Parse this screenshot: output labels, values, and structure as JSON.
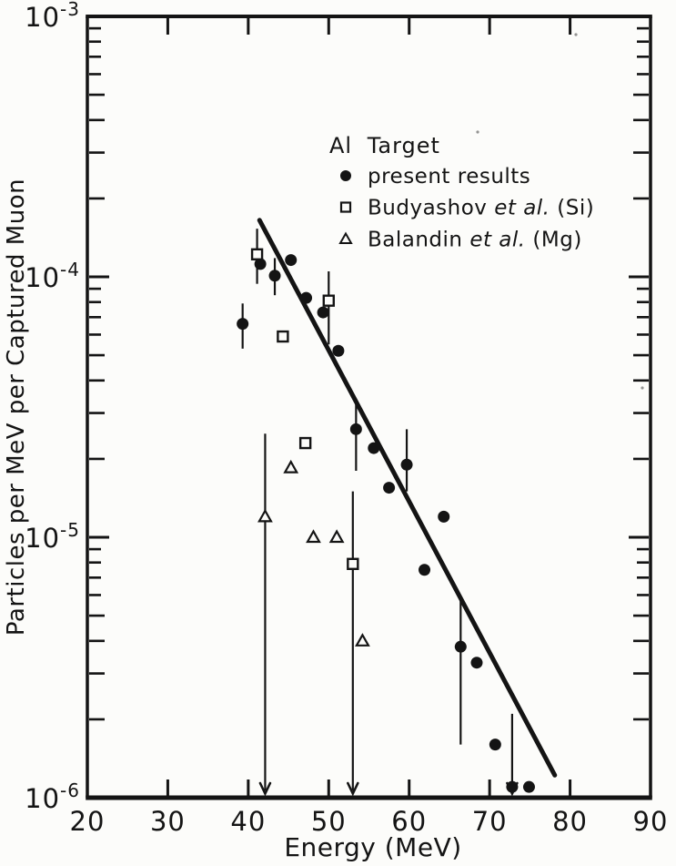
{
  "figure": {
    "background": "#fcfcfa",
    "ink": "#141414"
  },
  "chart_data": {
    "type": "scatter",
    "title": "Al Target",
    "xlabel": "Energy  (MeV)",
    "ylabel": "Particles per MeV per Captured Muon",
    "grid": false,
    "x_axis": {
      "min": 20,
      "max": 90,
      "ticks": [
        20,
        30,
        40,
        50,
        60,
        70,
        80,
        90
      ],
      "tick_labels": [
        "20",
        "30",
        "40",
        "50",
        "60",
        "70",
        "80",
        "90"
      ]
    },
    "y_axis": {
      "scale": "log",
      "max_exp": -3,
      "min_exp": -6,
      "decade_labels": [
        {
          "mantissa": "10",
          "exponent": "-3",
          "value_exp": -3
        },
        {
          "mantissa": "10",
          "exponent": "-4",
          "value_exp": -4
        },
        {
          "mantissa": "10",
          "exponent": "-5",
          "value_exp": -5
        },
        {
          "mantissa": "10",
          "exponent": "-6",
          "value_exp": -6
        }
      ]
    },
    "legend": {
      "title": "Al Target",
      "position": "upper-right-inside",
      "items": [
        {
          "marker": "filled-circle",
          "parts": [
            {
              "t": "present results",
              "i": false
            }
          ]
        },
        {
          "marker": "open-square",
          "parts": [
            {
              "t": "Budyashov ",
              "i": false
            },
            {
              "t": "et al.",
              "i": true
            },
            {
              "t": " (Si)",
              "i": false
            }
          ]
        },
        {
          "marker": "open-triangle",
          "parts": [
            {
              "t": "Balandin ",
              "i": false
            },
            {
              "t": "et al.",
              "i": true
            },
            {
              "t": " (Mg)",
              "i": false
            }
          ]
        }
      ]
    },
    "series": [
      {
        "name": "present results",
        "marker": "filled-circle",
        "points": [
          {
            "E": 39.3,
            "v": 6.6e-05,
            "lo": 5.3e-05,
            "hi": 7.9e-05
          },
          {
            "E": 41.5,
            "v": 0.000112
          },
          {
            "E": 43.3,
            "v": 0.000101,
            "lo": 8.5e-05,
            "hi": 0.000118
          },
          {
            "E": 45.3,
            "v": 0.000116
          },
          {
            "E": 47.2,
            "v": 8.3e-05
          },
          {
            "E": 49.3,
            "v": 7.3e-05
          },
          {
            "E": 51.2,
            "v": 5.2e-05
          },
          {
            "E": 53.4,
            "v": 2.6e-05,
            "lo": 1.8e-05,
            "hi": 3.3e-05
          },
          {
            "E": 55.6,
            "v": 2.2e-05
          },
          {
            "E": 57.5,
            "v": 1.55e-05
          },
          {
            "E": 59.7,
            "v": 1.9e-05,
            "lo": 1.5e-05,
            "hi": 2.6e-05
          },
          {
            "E": 61.9,
            "v": 7.5e-06
          },
          {
            "E": 64.3,
            "v": 1.2e-05
          },
          {
            "E": 66.4,
            "v": 3.8e-06,
            "lo": 1.6e-06,
            "hi": 5.7e-06
          },
          {
            "E": 68.4,
            "v": 3.3e-06
          },
          {
            "E": 70.7,
            "v": 1.6e-06
          },
          {
            "E": 72.8,
            "v": 1.1e-06,
            "hi": 2.1e-06,
            "lower_limit_arrow": true
          },
          {
            "E": 74.9,
            "v": 1.1e-06
          }
        ]
      },
      {
        "name": "Budyashov et al. (Si)",
        "marker": "open-square",
        "points": [
          {
            "E": 41.1,
            "v": 0.000122,
            "lo": 9.4e-05,
            "hi": 0.000153
          },
          {
            "E": 44.3,
            "v": 5.9e-05
          },
          {
            "E": 47.1,
            "v": 2.3e-05
          },
          {
            "E": 50.0,
            "v": 8.1e-05,
            "lo": 5.5e-05,
            "hi": 0.000105
          },
          {
            "E": 53.0,
            "v": 7.9e-06,
            "hi": 1.5e-05,
            "lower_limit_arrow": true
          }
        ]
      },
      {
        "name": "Balandin et al. (Mg)",
        "marker": "open-triangle",
        "points": [
          {
            "E": 42.1,
            "v": 1.2e-05,
            "hi": 2.5e-05,
            "lower_limit_arrow": true
          },
          {
            "E": 45.3,
            "v": 1.85e-05
          },
          {
            "E": 48.1,
            "v": 1e-05
          },
          {
            "E": 51.0,
            "v": 1e-05
          },
          {
            "E": 54.2,
            "v": 4e-06
          }
        ]
      }
    ],
    "fit_line": {
      "E1": 41.4,
      "v1": 0.000165,
      "E2": 78.1,
      "v2": 1.22e-06
    }
  }
}
